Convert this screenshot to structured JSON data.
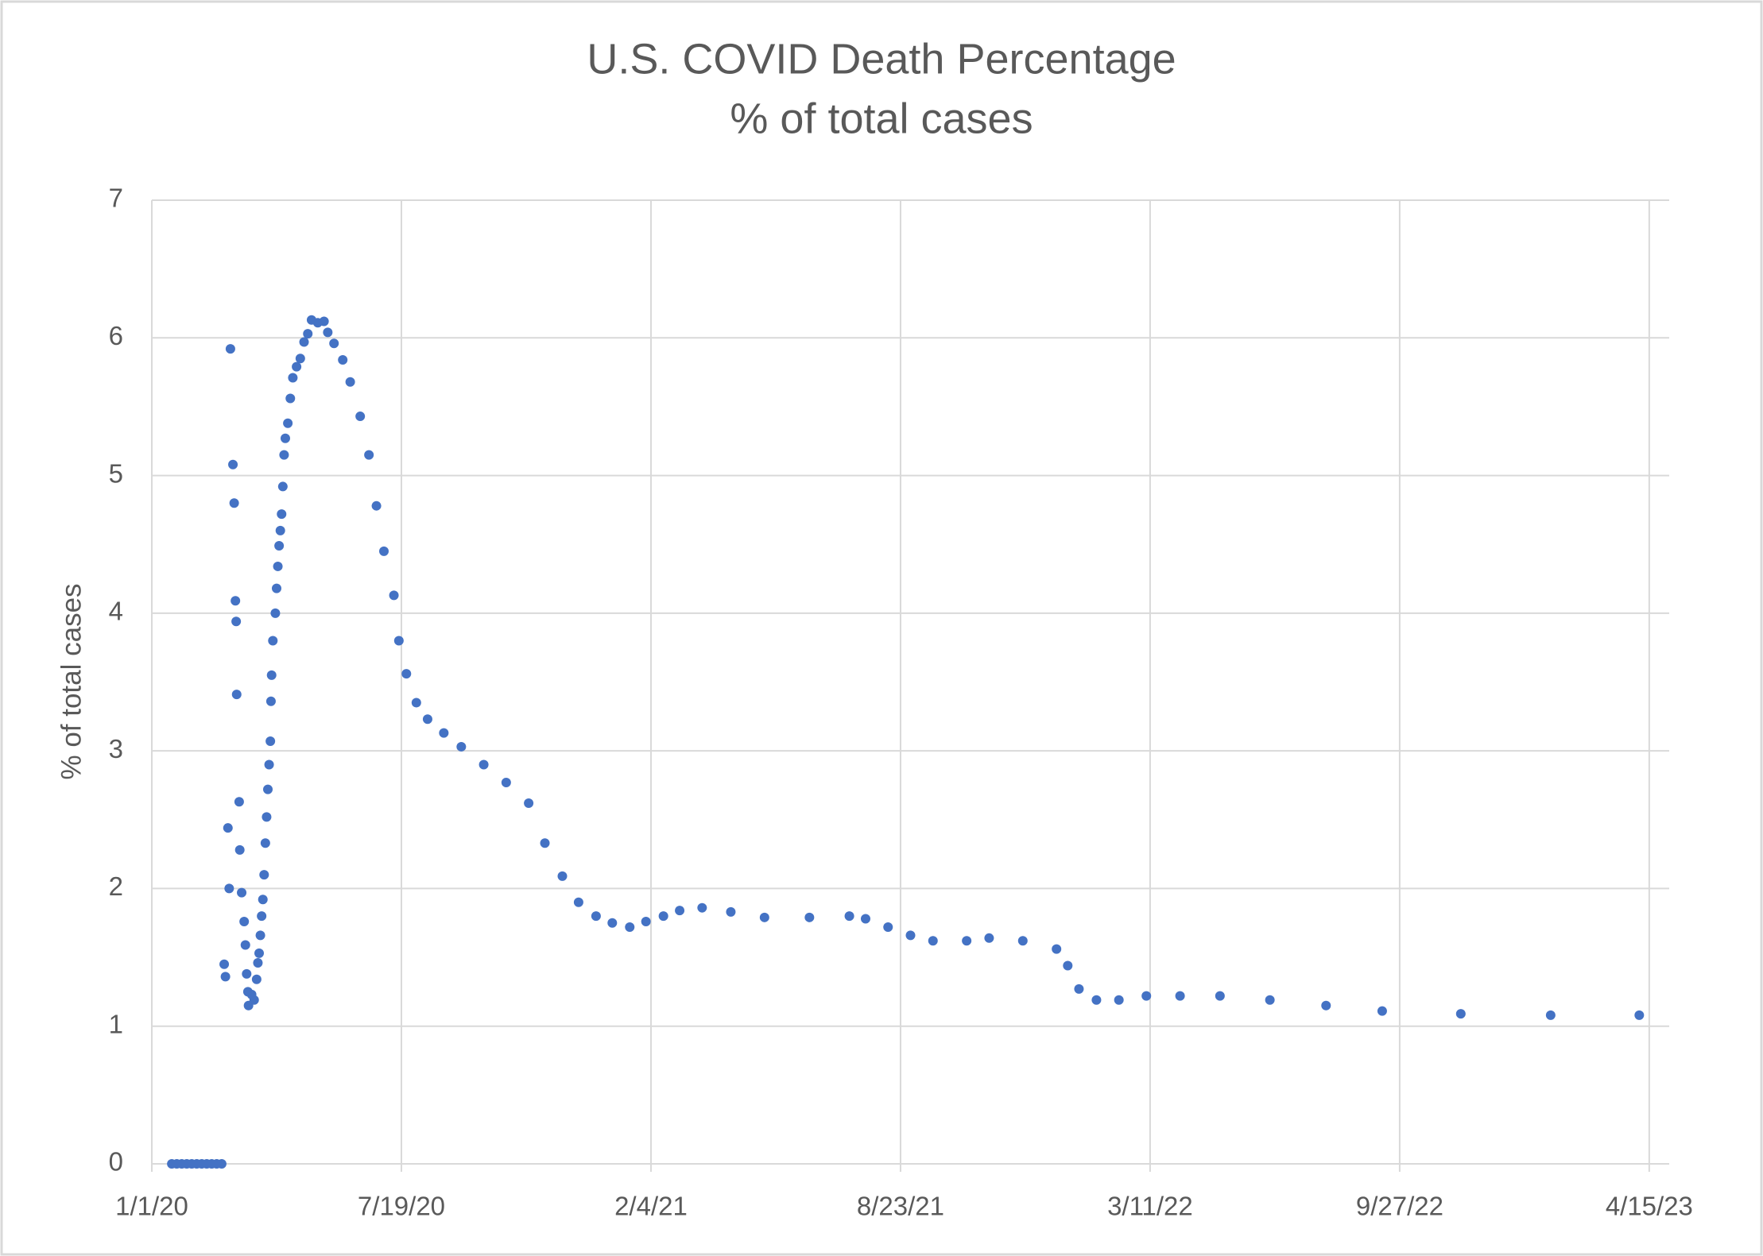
{
  "chart_data": {
    "type": "scatter",
    "title": "U.S. COVID Death Percentage",
    "subtitle": "% of total cases",
    "y_label": "% of total cases",
    "xlim": [
      43831,
      45047
    ],
    "xticks": [
      {
        "value": 43831,
        "label": "1/1/20"
      },
      {
        "value": 44031,
        "label": "7/19/20"
      },
      {
        "value": 44231,
        "label": "2/4/21"
      },
      {
        "value": 44431,
        "label": "8/23/21"
      },
      {
        "value": 44631,
        "label": "3/11/22"
      },
      {
        "value": 44831,
        "label": "9/27/22"
      },
      {
        "value": 45031,
        "label": "4/15/23"
      }
    ],
    "ylim": [
      0,
      7
    ],
    "yticks": [
      0,
      1,
      2,
      3,
      4,
      5,
      6,
      7
    ],
    "grid": true,
    "series": [
      {
        "color": "#4472c4",
        "x": [
          43847,
          43851,
          43855,
          43859,
          43863,
          43867,
          43871,
          43875,
          43879,
          43883,
          43887,
          43889,
          43890,
          43892,
          43893,
          43894,
          43896,
          43897,
          43898,
          43898.6,
          43899,
          43901,
          43901.5,
          43903,
          43905,
          43906,
          43907,
          43908,
          43908.5,
          43911,
          43913,
          43915,
          43916,
          43917,
          43918,
          43919,
          43920,
          43921,
          43922,
          43923,
          43924,
          43925,
          43926,
          43926.5,
          43927,
          43928,
          43930,
          43931,
          43932,
          43933,
          43934,
          43935,
          43936,
          43937,
          43938,
          43940,
          43942,
          43944,
          43947,
          43950,
          43953,
          43956,
          43959,
          43964,
          43969,
          43972,
          43977,
          43984,
          43990,
          43998,
          44005,
          44011,
          44017,
          44025,
          44029,
          44035,
          44043,
          44052,
          44065,
          44079,
          44097,
          44115,
          44133,
          44146,
          44160,
          44173,
          44187,
          44200,
          44214,
          44227,
          44241,
          44254,
          44272,
          44295,
          44322,
          44358,
          44390,
          44403,
          44421,
          44439,
          44457,
          44484,
          44502,
          44529,
          44556,
          44565,
          44574,
          44588,
          44606,
          44628,
          44655,
          44687,
          44727,
          44772,
          44817,
          44880,
          44952,
          45023
        ],
        "values": [
          0,
          0,
          0,
          0,
          0,
          0,
          0,
          0,
          0,
          0,
          0,
          1.45,
          1.36,
          2.44,
          2.0,
          5.92,
          5.08,
          4.8,
          4.09,
          3.94,
          3.41,
          2.63,
          2.28,
          1.97,
          1.76,
          1.59,
          1.38,
          1.25,
          1.15,
          1.23,
          1.19,
          1.34,
          1.46,
          1.53,
          1.66,
          1.8,
          1.92,
          2.1,
          2.33,
          2.52,
          2.72,
          2.9,
          3.07,
          3.36,
          3.55,
          3.8,
          4.0,
          4.18,
          4.34,
          4.49,
          4.6,
          4.72,
          4.92,
          5.15,
          5.27,
          5.38,
          5.56,
          5.71,
          5.79,
          5.85,
          5.97,
          6.03,
          6.13,
          6.11,
          6.12,
          6.04,
          5.96,
          5.84,
          5.68,
          5.43,
          5.15,
          4.78,
          4.45,
          4.13,
          3.8,
          3.56,
          3.35,
          3.23,
          3.13,
          3.03,
          2.9,
          2.77,
          2.62,
          2.33,
          2.09,
          1.9,
          1.8,
          1.75,
          1.72,
          1.76,
          1.8,
          1.84,
          1.86,
          1.83,
          1.79,
          1.79,
          1.8,
          1.78,
          1.72,
          1.66,
          1.62,
          1.62,
          1.64,
          1.62,
          1.56,
          1.44,
          1.27,
          1.19,
          1.19,
          1.22,
          1.22,
          1.22,
          1.19,
          1.15,
          1.11,
          1.09,
          1.08,
          1.08
        ]
      }
    ]
  }
}
